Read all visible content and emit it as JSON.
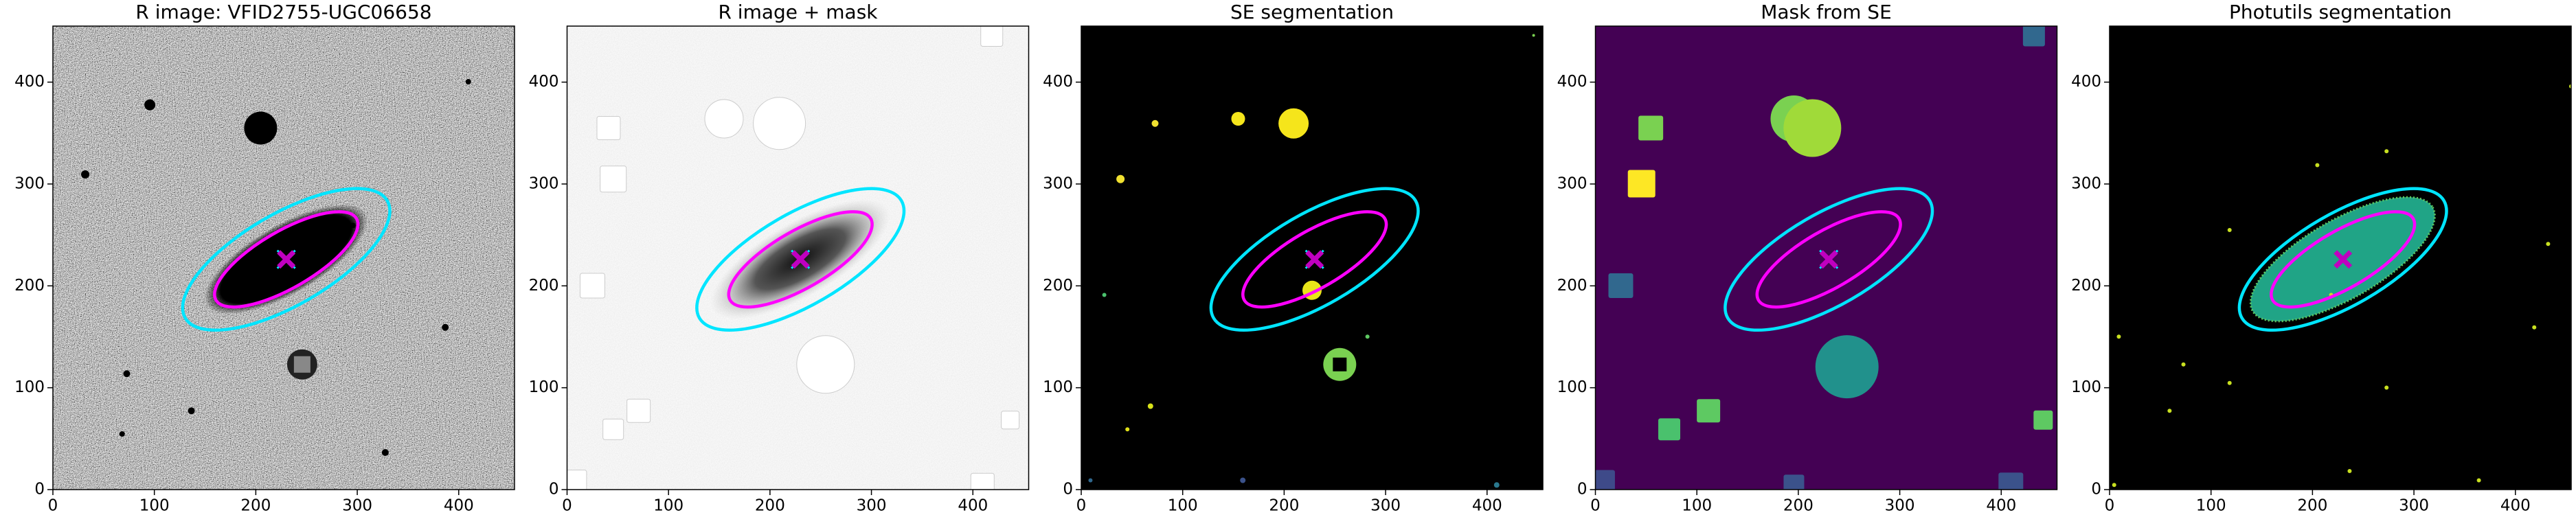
{
  "chart_data": [
    {
      "type": "image",
      "title": "R image: VFID2755-UGC06658",
      "xlim": [
        0,
        455
      ],
      "ylim": [
        0,
        455
      ],
      "xticks": [
        0,
        100,
        200,
        300,
        400
      ],
      "yticks": [
        0,
        100,
        200,
        300,
        400
      ],
      "ellipses": [
        {
          "color": "#00e5ff",
          "center": [
            230,
            226
          ],
          "a": 115,
          "b": 45,
          "angle": 30
        },
        {
          "color": "#ff00ff",
          "center": [
            230,
            226
          ],
          "a": 80,
          "b": 28,
          "angle": 30
        }
      ],
      "markers": [
        {
          "color": "#00e5ff",
          "x": 230,
          "y": 226
        },
        {
          "color": "#c000c0",
          "x": 230,
          "y": 226
        }
      ]
    },
    {
      "type": "image",
      "title": "R image + mask",
      "xlim": [
        0,
        455
      ],
      "ylim": [
        0,
        455
      ],
      "xticks": [
        0,
        100,
        200,
        300,
        400
      ],
      "yticks": [
        0,
        100,
        200,
        300,
        400
      ],
      "ellipses": [
        {
          "color": "#00e5ff",
          "center": [
            230,
            226
          ],
          "a": 115,
          "b": 45,
          "angle": 30
        },
        {
          "color": "#ff00ff",
          "center": [
            230,
            226
          ],
          "a": 80,
          "b": 28,
          "angle": 30
        }
      ],
      "markers": [
        {
          "color": "#00e5ff",
          "x": 230,
          "y": 226
        },
        {
          "color": "#c000c0",
          "x": 230,
          "y": 226
        }
      ]
    },
    {
      "type": "image",
      "title": "SE segmentation",
      "xlim": [
        0,
        455
      ],
      "ylim": [
        0,
        455
      ],
      "xticks": [
        0,
        100,
        200,
        300,
        400
      ],
      "yticks": [
        0,
        100,
        200,
        300,
        400
      ],
      "ellipses": [
        {
          "color": "#00e5ff",
          "center": [
            230,
            226
          ],
          "a": 115,
          "b": 45,
          "angle": 30
        },
        {
          "color": "#ff00ff",
          "center": [
            230,
            226
          ],
          "a": 80,
          "b": 28,
          "angle": 30
        }
      ],
      "markers": [
        {
          "color": "#00e5ff",
          "x": 230,
          "y": 226
        },
        {
          "color": "#c000c0",
          "x": 230,
          "y": 226
        }
      ]
    },
    {
      "type": "image",
      "title": "Mask from SE",
      "xlim": [
        0,
        455
      ],
      "ylim": [
        0,
        455
      ],
      "xticks": [
        0,
        100,
        200,
        300,
        400
      ],
      "yticks": [
        0,
        100,
        200,
        300,
        400
      ],
      "ellipses": [
        {
          "color": "#00e5ff",
          "center": [
            230,
            226
          ],
          "a": 115,
          "b": 45,
          "angle": 30
        },
        {
          "color": "#ff00ff",
          "center": [
            230,
            226
          ],
          "a": 80,
          "b": 28,
          "angle": 30
        }
      ],
      "markers": [
        {
          "color": "#00e5ff",
          "x": 230,
          "y": 226
        },
        {
          "color": "#c000c0",
          "x": 230,
          "y": 226
        }
      ]
    },
    {
      "type": "image",
      "title": "Photutils segmentation",
      "xlim": [
        0,
        455
      ],
      "ylim": [
        0,
        455
      ],
      "xticks": [
        0,
        100,
        200,
        300,
        400
      ],
      "yticks": [
        0,
        100,
        200,
        300,
        400
      ],
      "ellipses": [
        {
          "color": "#00e5ff",
          "center": [
            230,
            226
          ],
          "a": 115,
          "b": 45,
          "angle": 30
        },
        {
          "color": "#ff00ff",
          "center": [
            230,
            226
          ],
          "a": 80,
          "b": 28,
          "angle": 30
        }
      ],
      "markers": [
        {
          "color": "#c000c0",
          "x": 230,
          "y": 226
        }
      ]
    }
  ]
}
